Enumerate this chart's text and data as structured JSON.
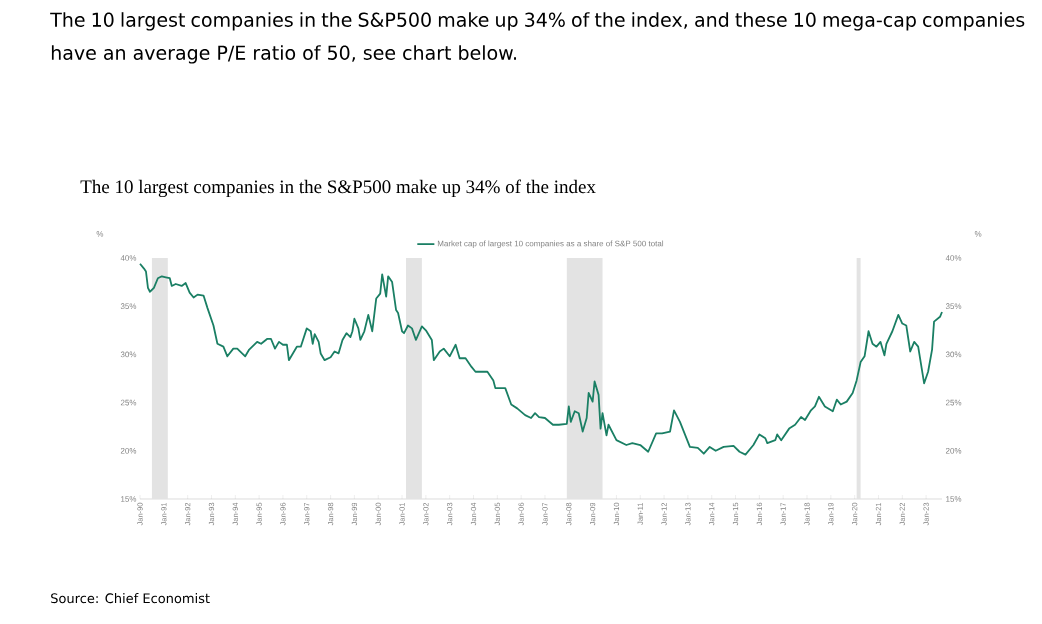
{
  "chart_data": {
    "type": "line",
    "title": "The 10 largest companies in the S&P500 make up 34% of the index",
    "ylabel": "%",
    "y2label": "%",
    "annotations": [
      "The 10 largest companies in the S&P500 make up 34% of the index, and these 10 mega-cap companies have an average P/E ratio of 50, see chart below.",
      "Source: Chief Economist"
    ],
    "series": [
      {
        "name": "Market cap of largest 10 companies as a share of S&P 500 total",
        "color": "#1a7f64",
        "x": [
          "1990-01",
          "1990-03",
          "1990-04",
          "1990-05",
          "1990-06",
          "1990-08",
          "1990-10",
          "1990-12",
          "1991-02",
          "1991-04",
          "1991-05",
          "1991-07",
          "1991-10",
          "1991-12",
          "1992-02",
          "1992-04",
          "1992-06",
          "1992-09",
          "1992-11",
          "1993-02",
          "1993-04",
          "1993-07",
          "1993-09",
          "1993-12",
          "1994-02",
          "1994-03",
          "1994-06",
          "1994-08",
          "1994-12",
          "1995-02",
          "1995-05",
          "1995-07",
          "1995-09",
          "1995-11",
          "1996-01",
          "1996-03",
          "1996-04",
          "1996-06",
          "1996-08",
          "1996-10",
          "1997-01",
          "1997-03",
          "1997-04",
          "1997-05",
          "1997-07",
          "1997-08",
          "1997-10",
          "1998-01",
          "1998-03",
          "1998-05",
          "1998-07",
          "1998-09",
          "1998-11",
          "1998-12",
          "1999-01",
          "1999-03",
          "1999-04",
          "1999-06",
          "1999-08",
          "1999-10",
          "1999-12",
          "2000-02",
          "2000-03",
          "2000-05",
          "2000-06",
          "2000-08",
          "2000-10",
          "2000-11",
          "2001-01",
          "2001-02",
          "2001-04",
          "2001-06",
          "2001-08",
          "2001-11",
          "2002-01",
          "2002-04",
          "2002-05",
          "2002-08",
          "2002-10",
          "2003-01",
          "2003-04",
          "2003-06",
          "2003-09",
          "2003-12",
          "2004-02",
          "2004-08",
          "2004-11",
          "2004-12",
          "2005-05",
          "2005-08",
          "2005-11",
          "2006-03",
          "2006-06",
          "2006-08",
          "2006-10",
          "2007-01",
          "2007-05",
          "2007-08",
          "2007-12",
          "2008-01",
          "2008-02",
          "2008-04",
          "2008-06",
          "2008-08",
          "2008-10",
          "2008-11",
          "2009-01",
          "2009-02",
          "2009-04",
          "2009-05",
          "2009-06",
          "2009-08",
          "2009-09",
          "2010-01",
          "2010-06",
          "2010-09",
          "2011-01",
          "2011-05",
          "2011-09",
          "2011-12",
          "2012-04",
          "2012-06",
          "2012-09",
          "2013-02",
          "2013-06",
          "2013-09",
          "2013-12",
          "2014-03",
          "2014-07",
          "2014-12",
          "2015-03",
          "2015-06",
          "2015-10",
          "2016-01",
          "2016-04",
          "2016-05",
          "2016-09",
          "2016-10",
          "2016-12",
          "2017-04",
          "2017-07",
          "2017-10",
          "2017-12",
          "2018-03",
          "2018-05",
          "2018-07",
          "2018-10",
          "2019-02",
          "2019-04",
          "2019-06",
          "2019-09",
          "2019-12",
          "2020-02",
          "2020-04",
          "2020-06",
          "2020-08",
          "2020-10",
          "2020-12",
          "2021-02",
          "2021-04",
          "2021-05",
          "2021-08",
          "2021-11",
          "2022-01",
          "2022-03",
          "2022-05",
          "2022-07",
          "2022-09",
          "2022-12",
          "2023-02",
          "2023-04",
          "2023-05",
          "2023-08",
          "2023-09"
        ],
        "values": [
          39.4,
          38.9,
          38.6,
          36.9,
          36.5,
          36.9,
          37.9,
          38.1,
          38.0,
          37.9,
          37.1,
          37.3,
          37.1,
          37.4,
          36.4,
          35.9,
          36.2,
          36.1,
          34.8,
          33.0,
          31.1,
          30.8,
          29.8,
          30.6,
          30.6,
          30.4,
          29.8,
          30.5,
          31.3,
          31.1,
          31.6,
          31.6,
          30.6,
          31.3,
          31.0,
          31.0,
          29.4,
          30.1,
          30.8,
          30.8,
          32.7,
          32.4,
          31.1,
          32.1,
          31.3,
          30.1,
          29.4,
          29.7,
          30.3,
          30.1,
          31.5,
          32.2,
          31.8,
          32.4,
          33.7,
          32.7,
          31.5,
          32.4,
          34.1,
          32.4,
          35.8,
          36.3,
          38.3,
          36.0,
          38.1,
          37.5,
          34.6,
          34.3,
          32.4,
          32.2,
          33.0,
          32.7,
          31.5,
          32.9,
          32.5,
          31.5,
          29.4,
          30.3,
          30.6,
          29.8,
          31.0,
          29.6,
          29.6,
          28.7,
          28.2,
          28.2,
          27.3,
          26.5,
          26.5,
          24.8,
          24.4,
          23.7,
          23.4,
          23.9,
          23.5,
          23.4,
          22.7,
          22.7,
          22.8,
          24.6,
          23.0,
          24.1,
          23.9,
          22.0,
          23.4,
          26.0,
          25.1,
          27.2,
          25.8,
          22.3,
          23.9,
          21.6,
          22.7,
          21.1,
          20.6,
          20.8,
          20.6,
          19.9,
          21.8,
          21.8,
          22.0,
          24.2,
          23.0,
          20.4,
          20.3,
          19.7,
          20.4,
          20.0,
          20.4,
          20.5,
          19.9,
          19.6,
          20.6,
          21.7,
          21.3,
          20.8,
          21.1,
          21.7,
          21.1,
          22.3,
          22.7,
          23.5,
          23.2,
          24.2,
          24.6,
          25.6,
          24.6,
          24.1,
          25.3,
          24.8,
          25.1,
          26.0,
          27.3,
          29.2,
          29.8,
          32.4,
          31.1,
          30.8,
          31.3,
          29.9,
          31.1,
          32.4,
          34.1,
          33.2,
          33.0,
          30.3,
          31.3,
          30.8,
          27.0,
          28.2,
          30.5,
          33.4,
          33.9,
          34.4
        ]
      }
    ],
    "bands": [
      {
        "axis": "x",
        "from": "1990-07",
        "to": "1991-03",
        "color": "#e3e3e3"
      },
      {
        "axis": "x",
        "from": "2001-03",
        "to": "2001-11",
        "color": "#e3e3e3"
      },
      {
        "axis": "x",
        "from": "2007-12",
        "to": "2009-06",
        "color": "#e3e3e3"
      },
      {
        "axis": "x",
        "from": "2020-02",
        "to": "2020-04",
        "color": "#e3e3e3"
      }
    ],
    "xlim": [
      "1990-01",
      "2023-09"
    ],
    "xticks": [
      {
        "value": "1990-01",
        "label": "Jan-90"
      },
      {
        "value": "1991-01",
        "label": "Jan-91"
      },
      {
        "value": "1992-01",
        "label": "Jan-92"
      },
      {
        "value": "1993-01",
        "label": "Jan-93"
      },
      {
        "value": "1994-01",
        "label": "Jan-94"
      },
      {
        "value": "1995-01",
        "label": "Jan-95"
      },
      {
        "value": "1996-01",
        "label": "Jan-96"
      },
      {
        "value": "1997-01",
        "label": "Jan-97"
      },
      {
        "value": "1998-01",
        "label": "Jan-98"
      },
      {
        "value": "1999-01",
        "label": "Jan-99"
      },
      {
        "value": "2000-01",
        "label": "Jan-00"
      },
      {
        "value": "2001-01",
        "label": "Jan-01"
      },
      {
        "value": "2002-01",
        "label": "Jan-02"
      },
      {
        "value": "2003-01",
        "label": "Jan-03"
      },
      {
        "value": "2004-01",
        "label": "Jan-04"
      },
      {
        "value": "2005-01",
        "label": "Jan-05"
      },
      {
        "value": "2006-01",
        "label": "Jan-06"
      },
      {
        "value": "2007-01",
        "label": "Jan-07"
      },
      {
        "value": "2008-01",
        "label": "Jan-08"
      },
      {
        "value": "2009-01",
        "label": "Jan-09"
      },
      {
        "value": "2010-01",
        "label": "Jan-10"
      },
      {
        "value": "2011-01",
        "label": "Jan-11"
      },
      {
        "value": "2012-01",
        "label": "Jan-12"
      },
      {
        "value": "2013-01",
        "label": "Jan-13"
      },
      {
        "value": "2014-01",
        "label": "Jan-14"
      },
      {
        "value": "2015-01",
        "label": "Jan-15"
      },
      {
        "value": "2016-01",
        "label": "Jan-16"
      },
      {
        "value": "2017-01",
        "label": "Jan-17"
      },
      {
        "value": "2018-01",
        "label": "Jan-18"
      },
      {
        "value": "2019-01",
        "label": "Jan-19"
      },
      {
        "value": "2020-01",
        "label": "Jan-20"
      },
      {
        "value": "2021-01",
        "label": "Jan-21"
      },
      {
        "value": "2022-01",
        "label": "Jan-22"
      },
      {
        "value": "2023-01",
        "label": "Jan-23"
      }
    ],
    "ylim": [
      15,
      40
    ],
    "yticks": [
      {
        "value": 15,
        "label": "15%"
      },
      {
        "value": 20,
        "label": "20%"
      },
      {
        "value": 25,
        "label": "25%"
      },
      {
        "value": 30,
        "label": "30%"
      },
      {
        "value": 35,
        "label": "35%"
      },
      {
        "value": 40,
        "label": "40%"
      }
    ],
    "y2lim": [
      15,
      40
    ],
    "y2ticks": [
      {
        "value": 15,
        "label": "15%"
      },
      {
        "value": 20,
        "label": "20%"
      },
      {
        "value": 25,
        "label": "25%"
      },
      {
        "value": 30,
        "label": "30%"
      },
      {
        "value": 35,
        "label": "35%"
      },
      {
        "value": 40,
        "label": "40%"
      }
    ],
    "legend": "top",
    "grid": false,
    "marker": "none",
    "line_style": "solid"
  }
}
